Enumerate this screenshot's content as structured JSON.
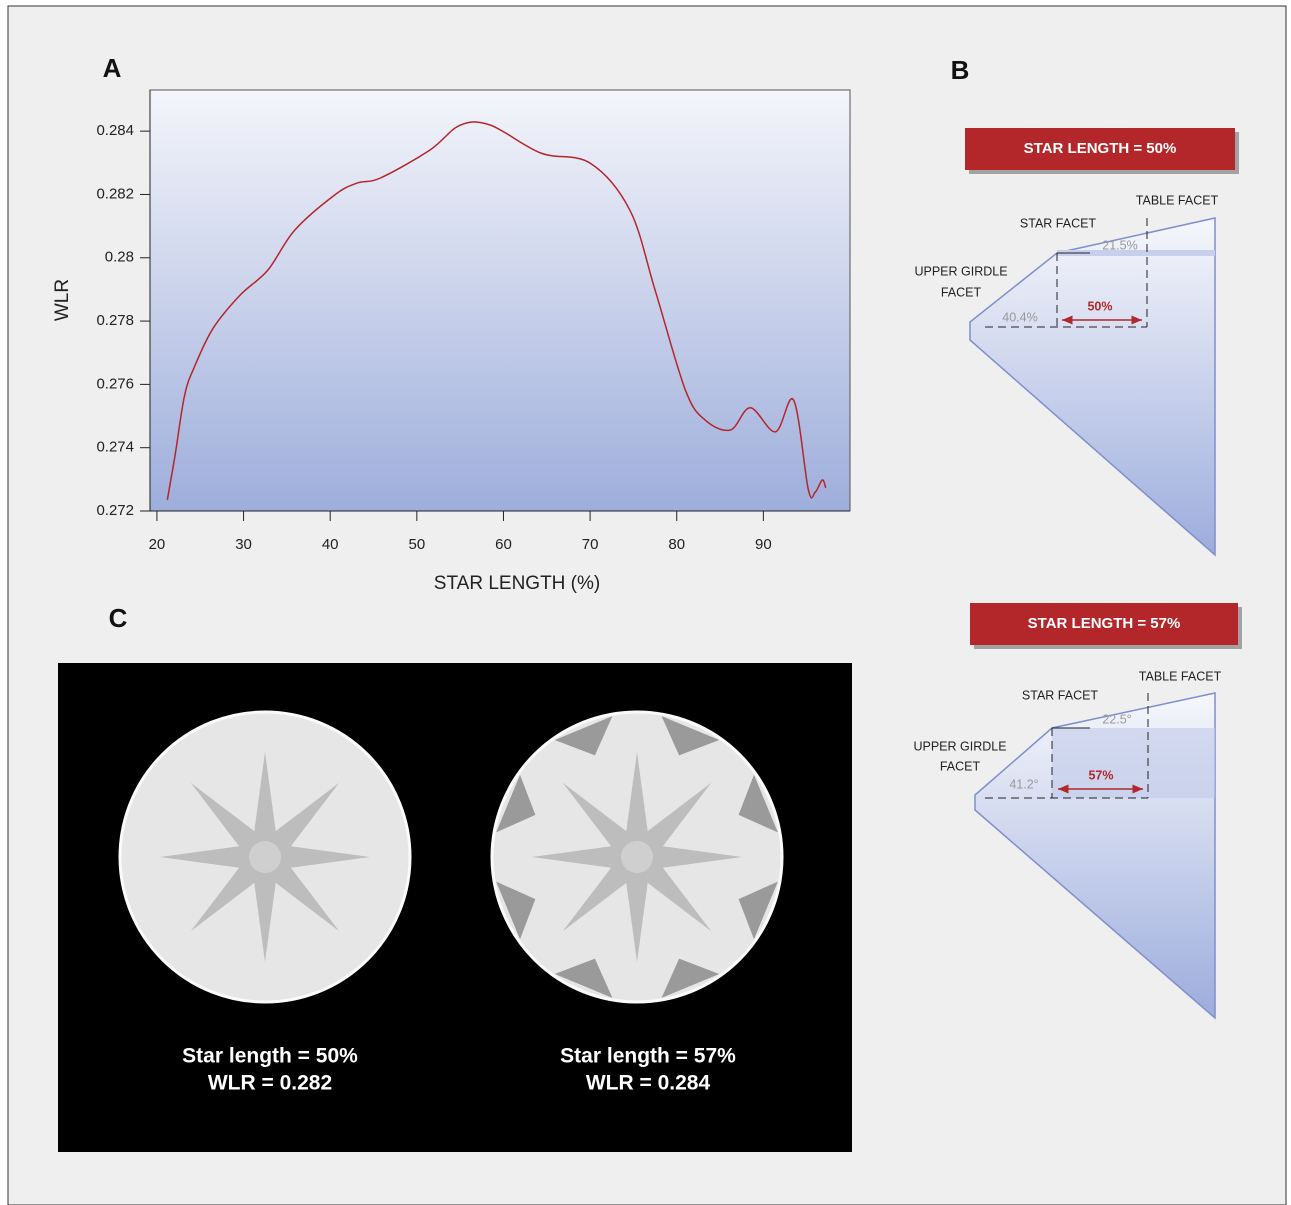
{
  "chart_data": {
    "type": "line",
    "xlabel": "STAR LENGTH (%)",
    "ylabel": "WLR",
    "color": "#b3262a",
    "x": [
      21.2,
      22.1,
      23.2,
      24.4,
      26.5,
      29.6,
      32.8,
      35.9,
      40.5,
      43.1,
      45.8,
      51.5,
      55,
      58.5,
      64.3,
      70,
      74.6,
      77.5,
      81,
      83.3,
      86.2,
      88.5,
      91.4,
      93.5,
      95.2,
      96,
      96.8,
      97.2
    ],
    "values": [
      0.27235,
      0.27377,
      0.27566,
      0.2766,
      0.27778,
      0.27882,
      0.27961,
      0.28087,
      0.28198,
      0.28236,
      0.28252,
      0.2834,
      0.28419,
      0.28419,
      0.28331,
      0.28299,
      0.2815,
      0.27898,
      0.27582,
      0.27487,
      0.27456,
      0.27526,
      0.2745,
      0.2755,
      0.27266,
      0.2726,
      0.27298,
      0.27273
    ],
    "xlim": [
      19.2,
      100
    ],
    "xticks": [
      20,
      30,
      40,
      50,
      60,
      70,
      80,
      90
    ],
    "ylim": [
      0.272,
      0.2853
    ],
    "yticks": [
      0.272,
      0.274,
      0.276,
      0.278,
      0.28,
      0.282,
      0.284
    ]
  },
  "panels": {
    "a": "A",
    "b": "B",
    "c": "C"
  },
  "diagrams": [
    {
      "banner": "STAR LENGTH = 50%",
      "table": "TABLE FACET",
      "star": "STAR FACET",
      "girdle": [
        "UPPER GIRDLE",
        "FACET"
      ],
      "star_angle": "21.5%",
      "girdle_angle": "40.4%",
      "length": "50%"
    },
    {
      "banner": "STAR LENGTH = 57%",
      "table": "TABLE FACET",
      "star": "STAR FACET",
      "girdle": [
        "UPPER GIRDLE",
        "FACET"
      ],
      "star_angle": "22.5°",
      "girdle_angle": "41.2°",
      "length": "57%"
    }
  ],
  "renderings": [
    {
      "caption": "Star length = 50%",
      "wlr": "WLR = 0.282"
    },
    {
      "caption": "Star length = 57%",
      "wlr": "WLR = 0.284"
    }
  ]
}
